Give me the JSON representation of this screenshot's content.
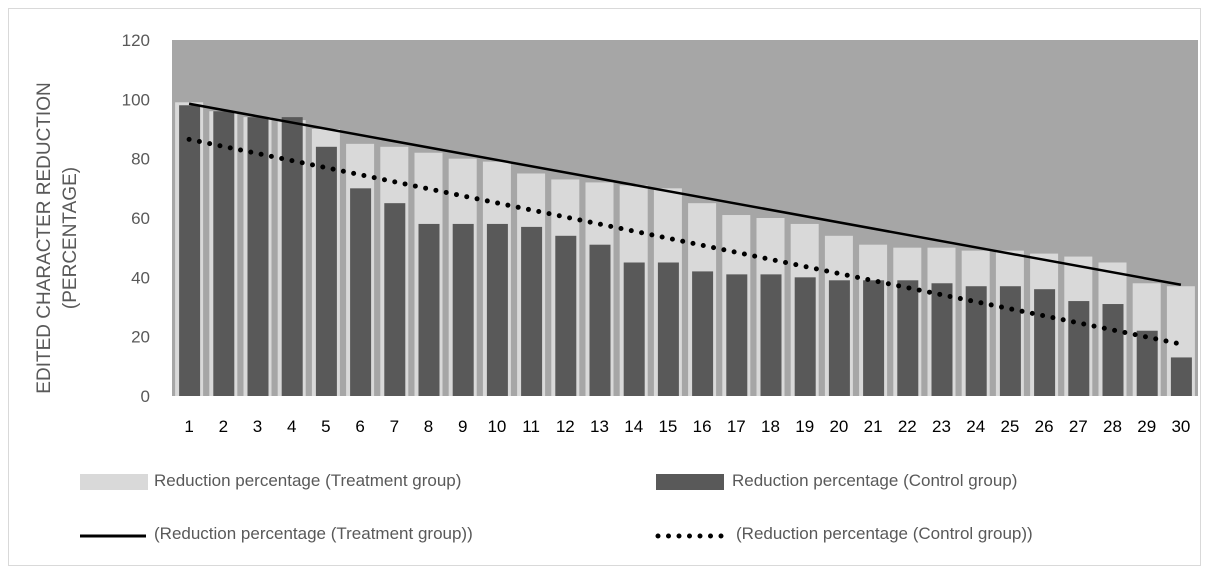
{
  "chart_data": {
    "type": "bar",
    "categories": [
      "1",
      "2",
      "3",
      "4",
      "5",
      "6",
      "7",
      "8",
      "9",
      "10",
      "11",
      "12",
      "13",
      "14",
      "15",
      "16",
      "17",
      "18",
      "19",
      "20",
      "21",
      "22",
      "23",
      "24",
      "25",
      "26",
      "27",
      "28",
      "29",
      "30"
    ],
    "series": [
      {
        "name": "Reduction percentage (Treatment group)",
        "type": "bar",
        "color": "#d9d9d9",
        "values": [
          99,
          96,
          94,
          93,
          90,
          85,
          84,
          82,
          80,
          79,
          75,
          73,
          72,
          71,
          70,
          65,
          61,
          60,
          58,
          54,
          51,
          50,
          50,
          49,
          49,
          48,
          47,
          45,
          38,
          37
        ]
      },
      {
        "name": "Reduction percentage (Control group)",
        "type": "bar",
        "color": "#595959",
        "values": [
          98,
          96,
          94,
          94,
          84,
          70,
          65,
          58,
          58,
          58,
          57,
          54,
          51,
          45,
          45,
          42,
          41,
          41,
          40,
          39,
          39,
          39,
          38,
          37,
          37,
          36,
          32,
          31,
          22,
          13
        ]
      }
    ],
    "trendlines": [
      {
        "name": "(Reduction percentage (Treatment group))",
        "style": "solid",
        "color": "#000000",
        "start": 98.5,
        "end": 37.5
      },
      {
        "name": "(Reduction percentage (Control group))",
        "style": "dotted",
        "color": "#000000",
        "start": 86.5,
        "end": 17.5
      }
    ],
    "ylabel": "EDITED CHARACTER REDUCTION (PERCENTAGE)",
    "ylabel_lines": [
      "EDITED CHARACTER REDUCTION",
      "(PERCENTAGE)"
    ],
    "ylim": [
      0,
      120
    ],
    "yticks": [
      "0",
      "20",
      "40",
      "60",
      "80",
      "100",
      "120"
    ],
    "plot_background": "#a6a6a6",
    "grid": false,
    "legend_position": "bottom"
  }
}
